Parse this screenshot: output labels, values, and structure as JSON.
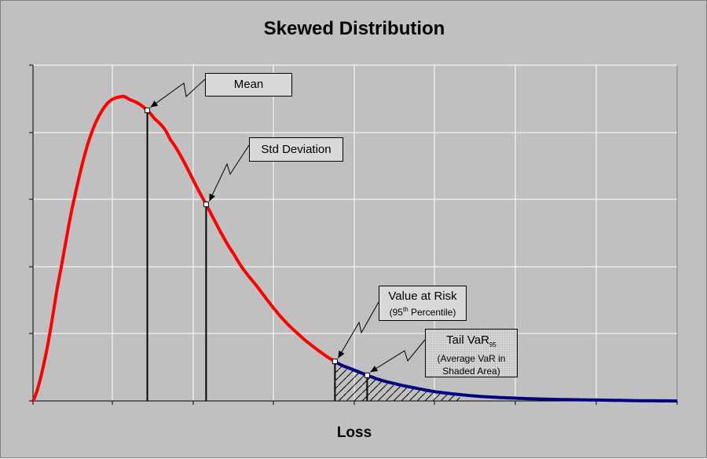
{
  "chart_data": {
    "type": "line",
    "title": "Skewed Distribution",
    "xlabel": "Loss",
    "ylabel": "",
    "grid": true,
    "axis_tick_labels": false,
    "colors": {
      "background": "#c0c0c0",
      "grid": "#ffffff",
      "body_curve": "#ff0000",
      "tail_curve": "#000080"
    },
    "xlim": [
      0,
      8
    ],
    "ylim": [
      0,
      1
    ],
    "curve": {
      "description_values": {
        "x": [
          0,
          0.15,
          0.3,
          0.5,
          0.7,
          0.9,
          1.1,
          1.2,
          1.35,
          1.5,
          1.7,
          2.1,
          2.5,
          2.8,
          3.1,
          3.4,
          3.75,
          4.0,
          4.3,
          4.6,
          5.0,
          5.5,
          6.0,
          6.5,
          7.0,
          7.5,
          8.0
        ],
        "y": [
          0.0,
          0.14,
          0.37,
          0.65,
          0.86,
          0.97,
          1.0,
          0.99,
          0.97,
          0.93,
          0.86,
          0.67,
          0.48,
          0.37,
          0.27,
          0.195,
          0.13,
          0.1,
          0.07,
          0.05,
          0.03,
          0.016,
          0.009,
          0.005,
          0.003,
          0.001,
          0.0
        ]
      },
      "tail_start_x": 3.75,
      "series": [
        {
          "segment": "body",
          "color": "#ff0000",
          "x_range": [
            0,
            3.75
          ]
        },
        {
          "segment": "tail",
          "color": "#000080",
          "x_range": [
            3.75,
            8
          ]
        }
      ]
    },
    "markers": [
      {
        "key": "mean",
        "x": 1.42,
        "y": 0.95
      },
      {
        "key": "std",
        "x": 2.15,
        "y": 0.65
      },
      {
        "key": "var",
        "x": 3.75,
        "y": 0.13
      },
      {
        "key": "tvar",
        "x": 4.15,
        "y": 0.08
      }
    ],
    "shaded_area": {
      "x_from": 3.75,
      "x_to": 5.3,
      "pattern": "diagonal-hatch"
    },
    "annotations": {
      "mean": {
        "text": "Mean"
      },
      "std": {
        "text": "Std Deviation"
      },
      "var": {
        "line1": "Value at Risk",
        "line2_prefix": "(95",
        "line2_sup": "th",
        "line2_suffix": " Percentile)"
      },
      "tvar": {
        "line1_prefix": "Tail VaR",
        "line1_sub": "95",
        "line2": "(Average VaR in",
        "line3": "Shaded Area)"
      }
    }
  }
}
